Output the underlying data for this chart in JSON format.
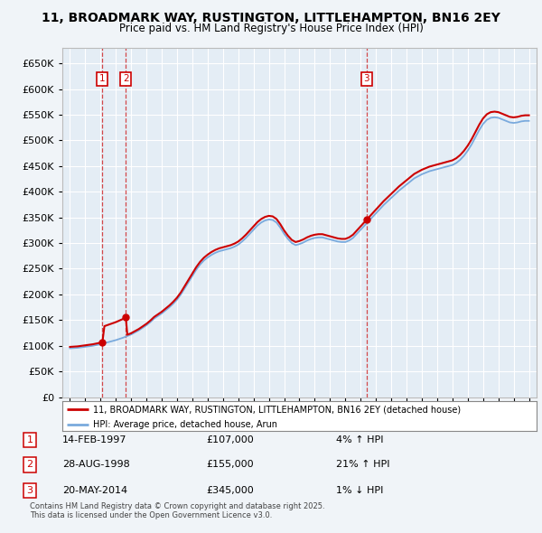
{
  "title": "11, BROADMARK WAY, RUSTINGTON, LITTLEHAMPTON, BN16 2EY",
  "subtitle": "Price paid vs. HM Land Registry's House Price Index (HPI)",
  "bg_color": "#f0f4f8",
  "plot_bg_color": "#e4edf5",
  "grid_color": "#ffffff",
  "sale_color": "#cc0000",
  "hpi_color": "#7aaadd",
  "sale_label": "11, BROADMARK WAY, RUSTINGTON, LITTLEHAMPTON, BN16 2EY (detached house)",
  "hpi_label": "HPI: Average price, detached house, Arun",
  "sales": [
    {
      "date": 1997.12,
      "price": 107000,
      "label": "1"
    },
    {
      "date": 1998.65,
      "price": 155000,
      "label": "2"
    },
    {
      "date": 2014.38,
      "price": 345000,
      "label": "3"
    }
  ],
  "table": [
    {
      "num": "1",
      "date": "14-FEB-1997",
      "price": "£107,000",
      "change": "4% ↑ HPI"
    },
    {
      "num": "2",
      "date": "28-AUG-1998",
      "price": "£155,000",
      "change": "21% ↑ HPI"
    },
    {
      "num": "3",
      "date": "20-MAY-2014",
      "price": "£345,000",
      "change": "1% ↓ HPI"
    }
  ],
  "footer": "Contains HM Land Registry data © Crown copyright and database right 2025.\nThis data is licensed under the Open Government Licence v3.0.",
  "ylim": [
    0,
    680000
  ],
  "yticks": [
    0,
    50000,
    100000,
    150000,
    200000,
    250000,
    300000,
    350000,
    400000,
    450000,
    500000,
    550000,
    600000,
    650000
  ],
  "xmin": 1994.5,
  "xmax": 2025.5,
  "hpi_years": [
    1995.0,
    1995.25,
    1995.5,
    1995.75,
    1996.0,
    1996.25,
    1996.5,
    1996.75,
    1997.0,
    1997.25,
    1997.5,
    1997.75,
    1998.0,
    1998.25,
    1998.5,
    1998.75,
    1999.0,
    1999.25,
    1999.5,
    1999.75,
    2000.0,
    2000.25,
    2000.5,
    2000.75,
    2001.0,
    2001.25,
    2001.5,
    2001.75,
    2002.0,
    2002.25,
    2002.5,
    2002.75,
    2003.0,
    2003.25,
    2003.5,
    2003.75,
    2004.0,
    2004.25,
    2004.5,
    2004.75,
    2005.0,
    2005.25,
    2005.5,
    2005.75,
    2006.0,
    2006.25,
    2006.5,
    2006.75,
    2007.0,
    2007.25,
    2007.5,
    2007.75,
    2008.0,
    2008.25,
    2008.5,
    2008.75,
    2009.0,
    2009.25,
    2009.5,
    2009.75,
    2010.0,
    2010.25,
    2010.5,
    2010.75,
    2011.0,
    2011.25,
    2011.5,
    2011.75,
    2012.0,
    2012.25,
    2012.5,
    2012.75,
    2013.0,
    2013.25,
    2013.5,
    2013.75,
    2014.0,
    2014.25,
    2014.5,
    2014.75,
    2015.0,
    2015.25,
    2015.5,
    2015.75,
    2016.0,
    2016.25,
    2016.5,
    2016.75,
    2017.0,
    2017.25,
    2017.5,
    2017.75,
    2018.0,
    2018.25,
    2018.5,
    2018.75,
    2019.0,
    2019.25,
    2019.5,
    2019.75,
    2020.0,
    2020.25,
    2020.5,
    2020.75,
    2021.0,
    2021.25,
    2021.5,
    2021.75,
    2022.0,
    2022.25,
    2022.5,
    2022.75,
    2023.0,
    2023.25,
    2023.5,
    2023.75,
    2024.0,
    2024.25,
    2024.5,
    2024.75,
    2025.0
  ],
  "hpi_values": [
    95000,
    95500,
    96000,
    97000,
    98000,
    99000,
    100000,
    101500,
    103000,
    105000,
    107000,
    109000,
    111000,
    113500,
    116000,
    119000,
    122000,
    126000,
    130000,
    135000,
    140000,
    146000,
    153000,
    158000,
    163000,
    169000,
    175000,
    182000,
    190000,
    200000,
    212000,
    224000,
    236000,
    248000,
    258000,
    266000,
    272000,
    277000,
    281000,
    284000,
    286000,
    288000,
    290000,
    293000,
    297000,
    303000,
    310000,
    318000,
    326000,
    334000,
    340000,
    344000,
    346000,
    345000,
    340000,
    330000,
    318000,
    308000,
    300000,
    296000,
    298000,
    301000,
    305000,
    308000,
    310000,
    311000,
    311000,
    309000,
    307000,
    305000,
    303000,
    302000,
    302000,
    305000,
    310000,
    318000,
    326000,
    334000,
    342000,
    350000,
    358000,
    366000,
    374000,
    381000,
    388000,
    395000,
    402000,
    408000,
    414000,
    420000,
    426000,
    430000,
    434000,
    437000,
    440000,
    442000,
    444000,
    446000,
    448000,
    450000,
    452000,
    456000,
    462000,
    470000,
    480000,
    492000,
    506000,
    520000,
    532000,
    540000,
    544000,
    545000,
    544000,
    541000,
    538000,
    535000,
    534000,
    535000,
    537000,
    538000,
    538000
  ]
}
